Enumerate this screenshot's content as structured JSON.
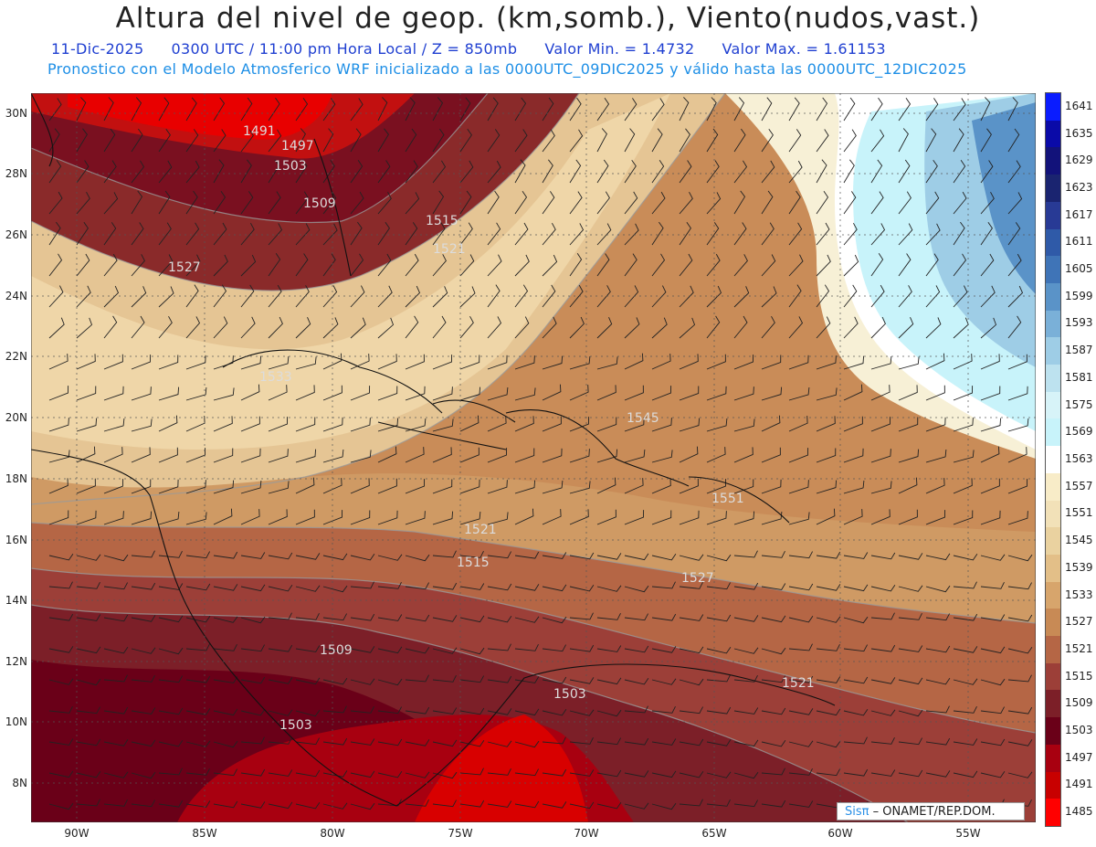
{
  "header": {
    "title": "Altura del nivel de geop. (km,somb.), Viento(nudos,vast.)",
    "date": "11-Dic-2025",
    "time": "0300 UTC / 11:00 pm Hora Local / Z = 850mb",
    "min": "Valor Min. = 1.4732",
    "max": "Valor Max. = 1.61153",
    "model_line": "Pronostico con el Modelo Atmosferico WRF inicializado a las 0000UTC_09DIC2025 y válido hasta las  0000UTC_12DIC2025"
  },
  "axes": {
    "lat_labels": [
      "30N",
      "28N",
      "26N",
      "24N",
      "22N",
      "20N",
      "18N",
      "16N",
      "14N",
      "12N",
      "10N",
      "8N"
    ],
    "lon_labels": [
      "90W",
      "85W",
      "80W",
      "75W",
      "70W",
      "65W",
      "60W",
      "55W"
    ]
  },
  "colorbar": {
    "labels": [
      "1641",
      "1635",
      "1629",
      "1623",
      "1617",
      "1611",
      "1605",
      "1599",
      "1593",
      "1587",
      "1581",
      "1575",
      "1569",
      "1563",
      "1557",
      "1551",
      "1545",
      "1539",
      "1533",
      "1527",
      "1521",
      "1515",
      "1509",
      "1503",
      "1497",
      "1491",
      "1485"
    ],
    "colors": [
      "#0a1cff",
      "#0a0aa8",
      "#12127a",
      "#1a2470",
      "#283a95",
      "#2f5aa8",
      "#3f74b7",
      "#5a93c8",
      "#7ab0d8",
      "#9ecde6",
      "#bde2ef",
      "#d7f3f8",
      "#c8f3fa",
      "#ffffff",
      "#f8ecc8",
      "#f2e1b8",
      "#ead2a0",
      "#e3bf88",
      "#d7a56c",
      "#c88a55",
      "#b56645",
      "#9c3f38",
      "#7c1f28",
      "#6a0018",
      "#a80010",
      "#c80000",
      "#ff0000"
    ]
  },
  "contour_labels": [
    "1491",
    "1497",
    "1503",
    "1509",
    "1515",
    "1521",
    "1527",
    "1533",
    "1545",
    "1551",
    "1503",
    "1503",
    "1509",
    "1515",
    "1521",
    "1527",
    "1521"
  ],
  "credit": {
    "sis": "Sisπ",
    "rest": "– ONAMET/REP.DOM."
  }
}
